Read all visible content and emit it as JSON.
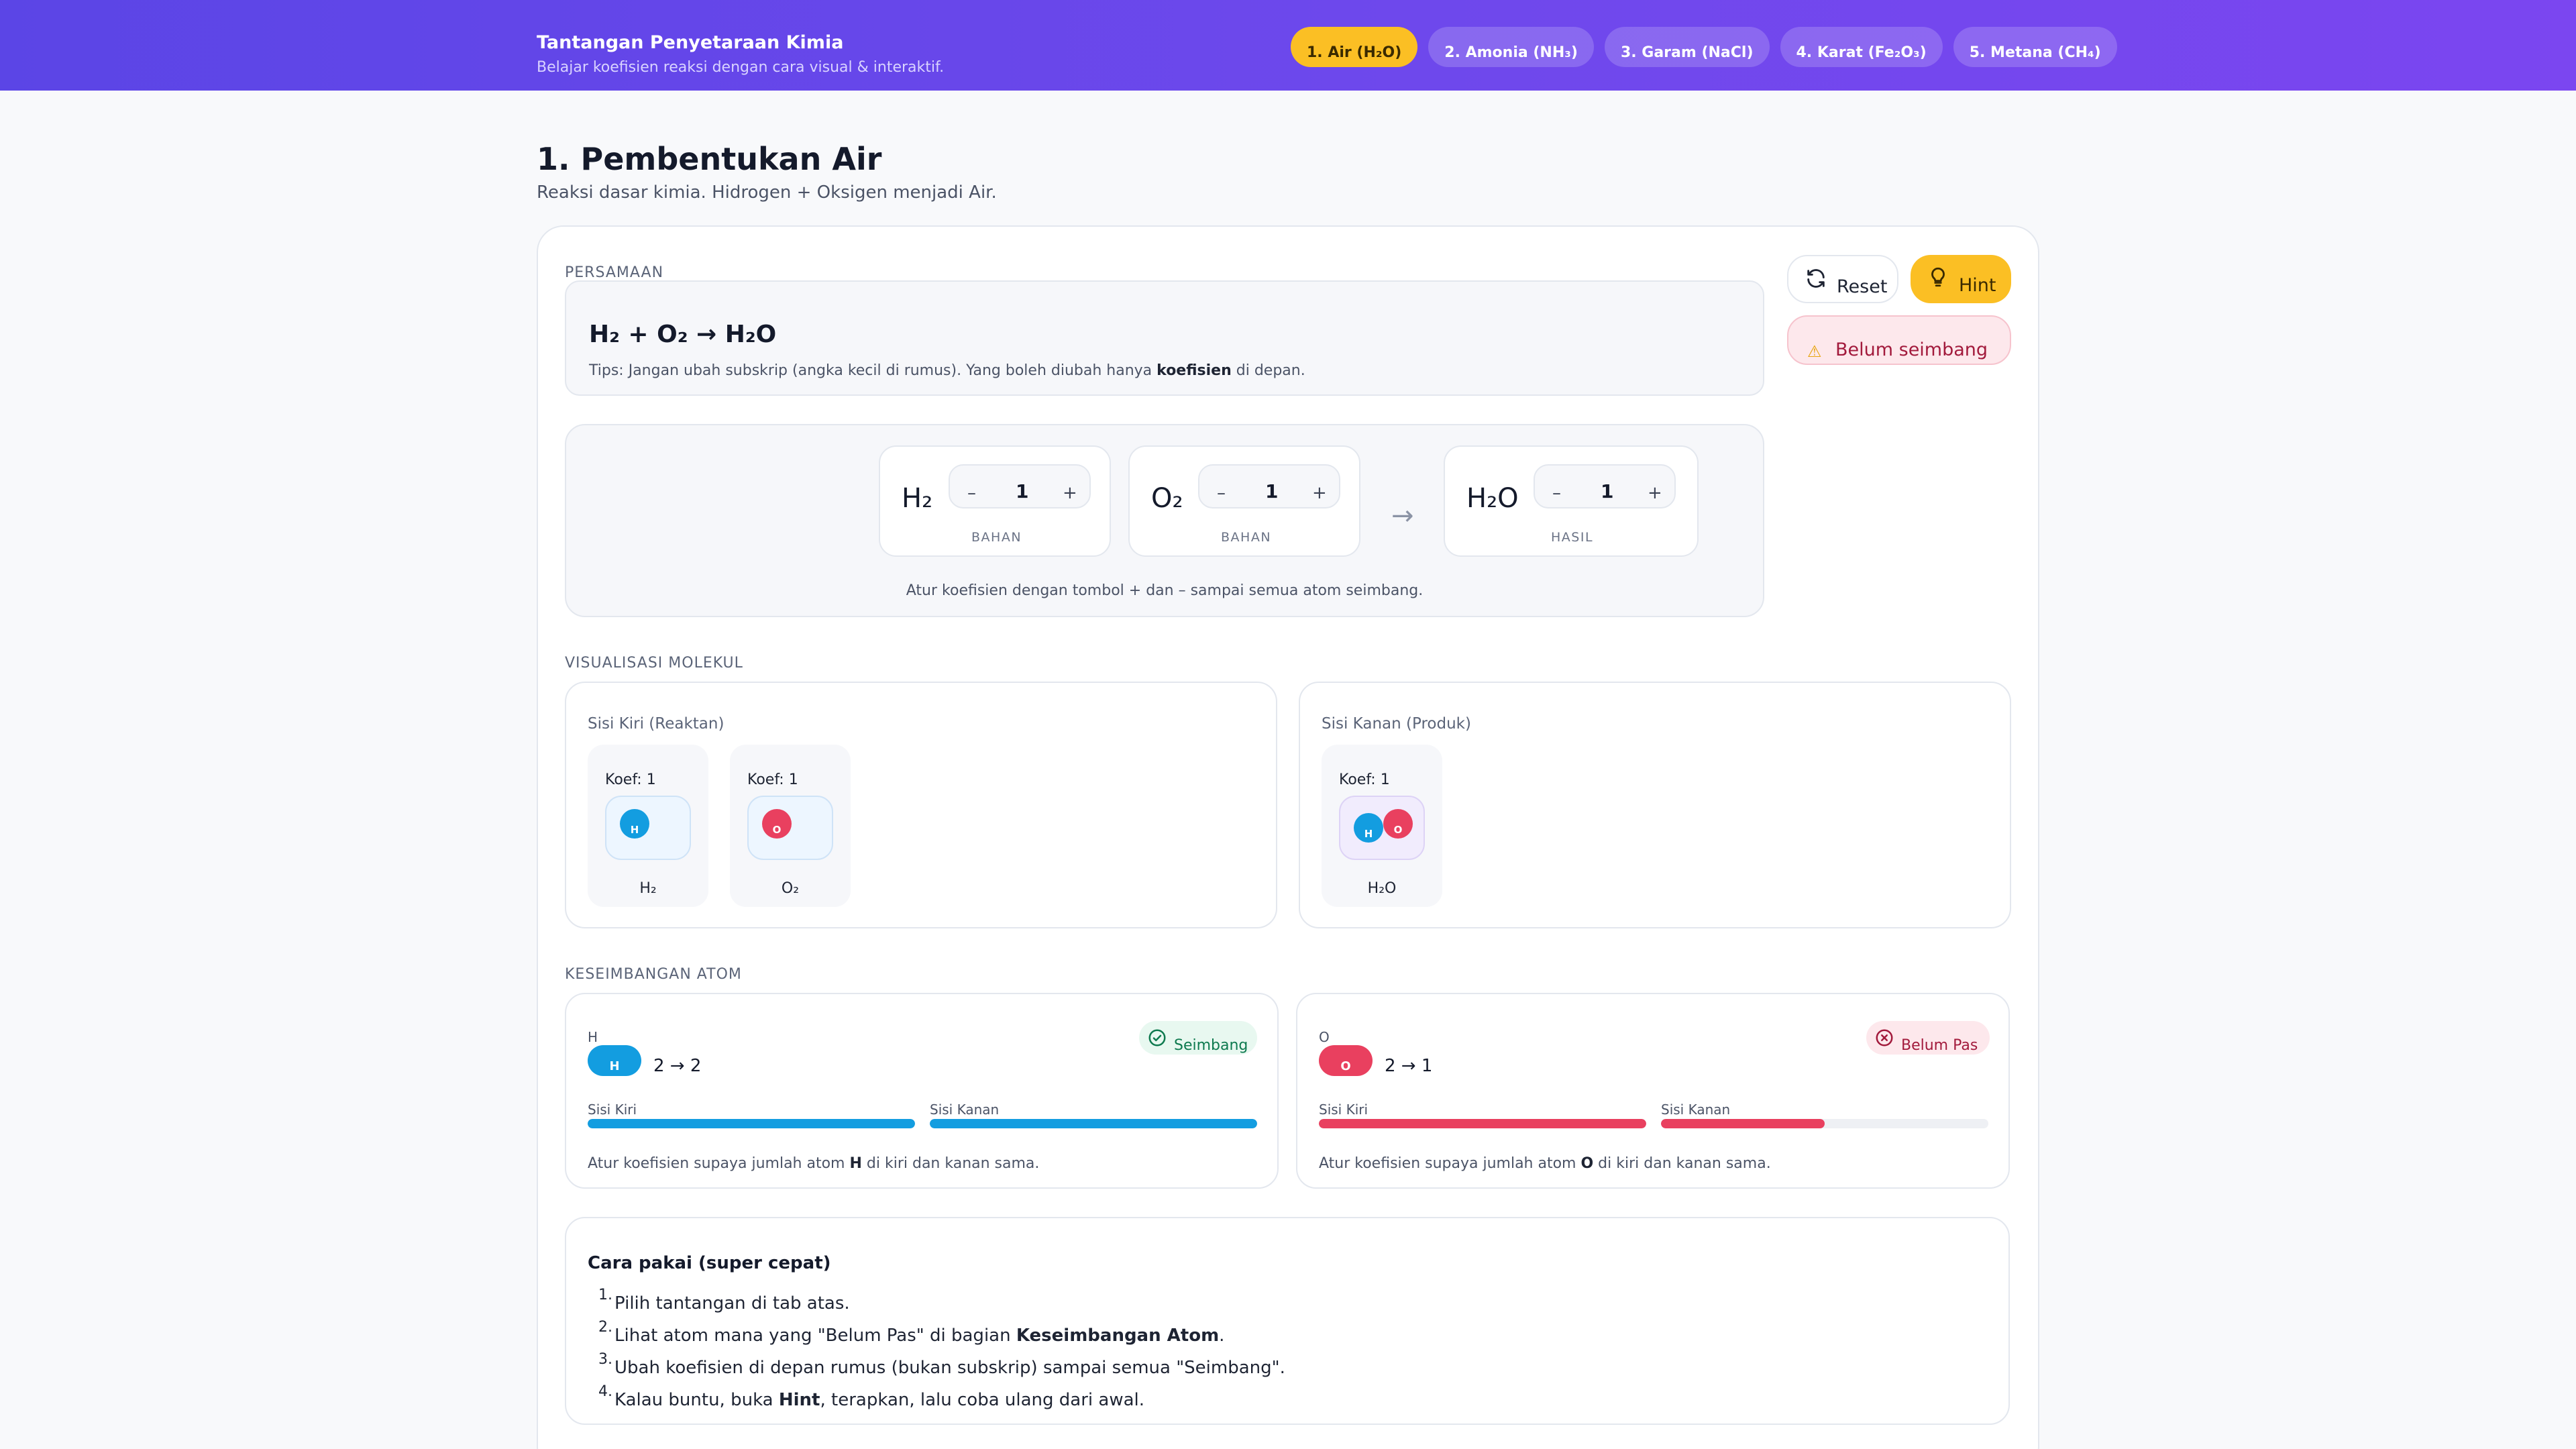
{
  "app": {
    "title": "Tantangan Penyetaraan Kimia",
    "subtitle": "Belajar koefisien reaksi dengan cara visual & interaktif."
  },
  "tabs": [
    {
      "label": "1. Air (H₂O)",
      "active": true
    },
    {
      "label": "2. Amonia (NH₃)",
      "active": false
    },
    {
      "label": "3. Garam (NaCl)",
      "active": false
    },
    {
      "label": "4. Karat (Fe₂O₃)",
      "active": false
    },
    {
      "label": "5. Metana (CH₄)",
      "active": false
    }
  ],
  "page": {
    "title": "1. Pembentukan Air",
    "subtitle": "Reaksi dasar kimia. Hidrogen + Oksigen menjadi Air."
  },
  "equation": {
    "section_label": "PERSAMAAN",
    "text": "H₂ + O₂ → H₂O",
    "tip_before": "Tips: Jangan ubah subskrip (angka kecil di rumus). Yang boleh diubah hanya ",
    "tip_bold": "koefisien",
    "tip_after": " di depan."
  },
  "actions": {
    "reset_label": "Reset",
    "hint_label": "Hint",
    "status_label": "Belum seimbang",
    "status_icon": "warning-icon"
  },
  "coefficients": {
    "species": [
      {
        "formula": "H₂",
        "value": "1",
        "kind": "BAHAN"
      },
      {
        "formula": "O₂",
        "value": "1",
        "kind": "BAHAN"
      },
      {
        "formula": "H₂O",
        "value": "1",
        "kind": "HASIL"
      }
    ],
    "minus": "–",
    "plus": "+",
    "arrow": "→",
    "help": "Atur koefisien dengan tombol + dan – sampai semua atom seimbang."
  },
  "visualization": {
    "section_label": "VISUALISASI MOLEKUL",
    "left_title": "Sisi Kiri (Reaktan)",
    "right_title": "Sisi Kanan (Produk)",
    "left_molecules": [
      {
        "koef": "Koef: 1",
        "name": "H₂",
        "atom": "H"
      },
      {
        "koef": "Koef: 1",
        "name": "O₂",
        "atom": "O"
      }
    ],
    "right_molecules": [
      {
        "koef": "Koef: 1",
        "name": "H₂O",
        "atom_h": "H",
        "atom_o": "O"
      }
    ]
  },
  "balance": {
    "section_label": "KESEIMBANGAN ATOM",
    "left_label": "Sisi Kiri",
    "right_label": "Sisi Kanan",
    "help_before": "Atur koefisien supaya jumlah atom ",
    "help_after": " di kiri dan kanan sama.",
    "items": [
      {
        "element": "H",
        "counts": "2 → 2",
        "status": "Seimbang",
        "left_fraction": 1.0,
        "right_fraction": 1.0,
        "color": "#139de0"
      },
      {
        "element": "O",
        "counts": "2 → 1",
        "status": "Belum Pas",
        "left_fraction": 1.0,
        "right_fraction": 0.5,
        "color": "#e9405f"
      }
    ]
  },
  "howto": {
    "title": "Cara pakai (super cepat)",
    "steps": [
      {
        "num": "1.",
        "before": "Pilih tantangan di tab atas.",
        "bold": "",
        "after": ""
      },
      {
        "num": "2.",
        "before": "Lihat atom mana yang \"Belum Pas\" di bagian ",
        "bold": "Keseimbangan Atom",
        "after": "."
      },
      {
        "num": "3.",
        "before": "Ubah koefisien di depan rumus (bukan subskrip) sampai semua \"Seimbang\".",
        "bold": "",
        "after": ""
      },
      {
        "num": "4.",
        "before": "Kalau buntu, buka ",
        "bold": "Hint",
        "after": ", terapkan, lalu coba ulang dari awal."
      }
    ]
  },
  "colors": {
    "accent": "#5b45e6",
    "hint": "#fbbf24",
    "hydrogen": "#139de0",
    "oxygen": "#e9405f"
  }
}
